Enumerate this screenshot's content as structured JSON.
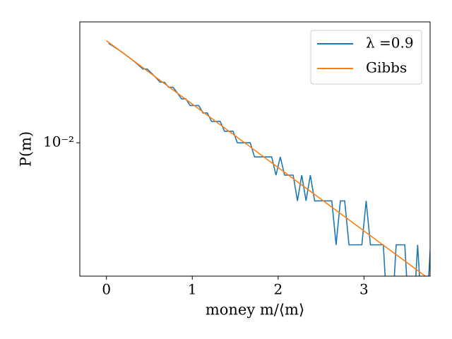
{
  "chart_data": {
    "type": "line",
    "log_y": true,
    "x_label": "money m/⟨m⟩",
    "y_label": "P(m)",
    "xlim": [
      -0.31,
      3.77
    ],
    "xticks": [
      0,
      1,
      2,
      3
    ],
    "ylim": [
      0.00122,
      0.0673
    ],
    "yticks": [
      {
        "value": 0.01,
        "label": "10⁻²"
      }
    ],
    "legend": "upper right",
    "series": [
      {
        "name": "λ =0.9",
        "color": "#1f77b4",
        "x": [
          0.025,
          0.075,
          0.125,
          0.175,
          0.225,
          0.275,
          0.325,
          0.375,
          0.425,
          0.475,
          0.525,
          0.575,
          0.625,
          0.675,
          0.725,
          0.775,
          0.825,
          0.875,
          0.925,
          0.975,
          1.025,
          1.075,
          1.125,
          1.175,
          1.225,
          1.275,
          1.325,
          1.375,
          1.425,
          1.475,
          1.525,
          1.575,
          1.625,
          1.675,
          1.725,
          1.775,
          1.825,
          1.875,
          1.925,
          1.975,
          2.025,
          2.075,
          2.125,
          2.175,
          2.225,
          2.275,
          2.325,
          2.375,
          2.425,
          2.475,
          2.525,
          2.575,
          2.625,
          2.675,
          2.725,
          2.775,
          2.825,
          2.875,
          2.925,
          2.975,
          3.025,
          3.075,
          3.125,
          3.175,
          3.225,
          3.275,
          3.325,
          3.375,
          3.425,
          3.475,
          3.525,
          3.575,
          3.625,
          3.675,
          3.725,
          3.775
        ],
        "values": [
          0.048,
          0.046,
          0.044,
          0.042,
          0.04,
          0.038,
          0.036,
          0.034,
          0.032,
          0.032,
          0.03,
          0.028,
          0.026,
          0.026,
          0.024,
          0.024,
          0.022,
          0.02,
          0.02,
          0.018,
          0.018,
          0.018,
          0.016,
          0.016,
          0.014,
          0.014,
          0.014,
          0.012,
          0.012,
          0.012,
          0.01,
          0.01,
          0.01,
          0.01,
          0.008,
          0.008,
          0.008,
          0.008,
          0.008,
          0.006,
          0.008,
          0.006,
          0.006,
          0.006,
          0.004,
          0.006,
          0.004,
          0.006,
          0.004,
          0.004,
          0.004,
          0.004,
          0.004,
          0.002,
          0.004,
          0.004,
          0.002,
          0.002,
          0.002,
          0.002,
          0.004,
          0.002,
          0.002,
          0.002,
          0.002,
          0,
          0,
          0.002,
          0.002,
          0.002,
          0,
          0,
          0.002,
          0,
          0,
          0.002
        ]
      },
      {
        "name": "Gibbs",
        "color": "#ff7f0e",
        "x": [
          0,
          1,
          2,
          3,
          3.8
        ],
        "values": [
          0.05,
          0.0184,
          0.00677,
          0.00249,
          0.00112
        ]
      }
    ]
  }
}
